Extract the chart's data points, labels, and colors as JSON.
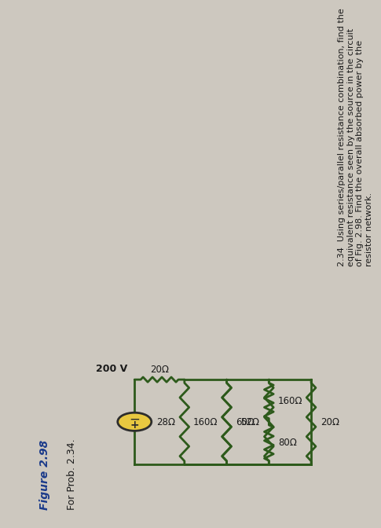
{
  "title_text": "2.34  Using series/parallel resistance combination, find the\nequivalent resistance seen by the source in the circuit\nof Fig. 2.98. Find the overall absorbed power by the\nresistor network.",
  "figure_label": "Figure 2.98",
  "figure_sublabel": "For Prob. 2.34.",
  "voltage_label": "200 V",
  "R1": "20Ω",
  "R2": "28Ω",
  "R3": "60Ω",
  "R4": "160Ω",
  "R5": "160Ω",
  "R6": "80Ω",
  "R7": "52Ω",
  "R8": "20Ω",
  "bg_color": "#cdc8bf",
  "wire_color": "#2d5a1b",
  "text_color": "#1a1a1a",
  "label_color": "#1a3a8a",
  "source_fill": "#e8c840",
  "source_edge": "#2d2d2d",
  "title_color": "#1a1a1a"
}
